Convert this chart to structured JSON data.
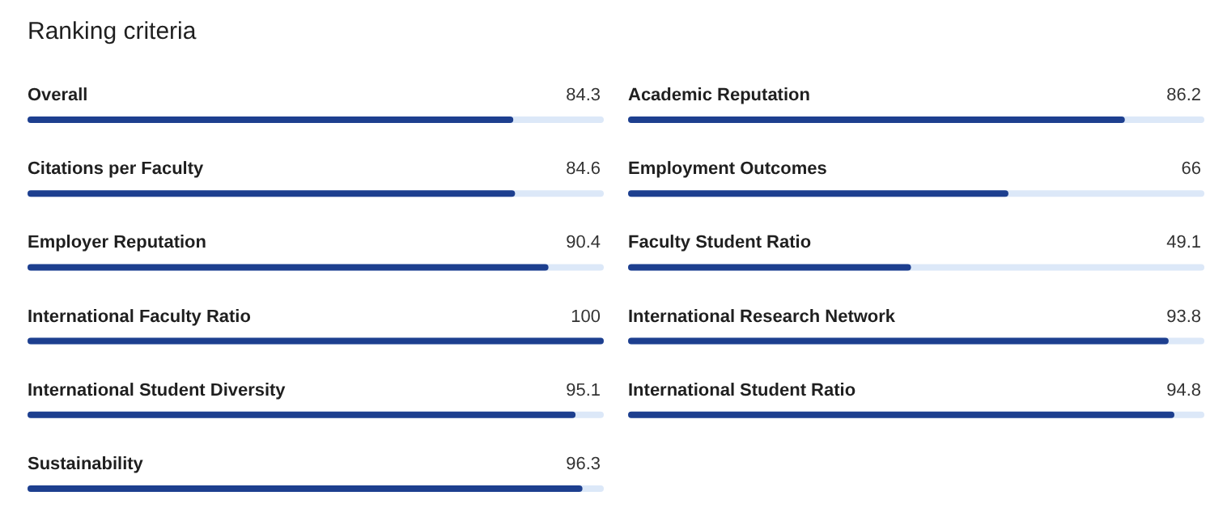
{
  "chart_data": [
    {
      "type": "bar",
      "title": "Ranking criteria",
      "orientation": "horizontal",
      "categories": [
        "Overall",
        "Citations per Faculty",
        "Employer Reputation",
        "International Faculty Ratio",
        "International Student Diversity",
        "Sustainability"
      ],
      "values": [
        84.3,
        84.6,
        90.4,
        100,
        95.1,
        96.3
      ],
      "color": "#1d3f8f",
      "xlim": [
        0,
        100
      ],
      "data_labels": true
    },
    {
      "type": "bar",
      "orientation": "horizontal",
      "categories": [
        "Academic Reputation",
        "Employment Outcomes",
        "Faculty Student Ratio",
        "International Research Network",
        "International Student Ratio"
      ],
      "values": [
        86.2,
        66,
        49.1,
        93.8,
        94.8
      ],
      "color": "#1d3f8f",
      "xlim": [
        0,
        100
      ],
      "data_labels": true
    }
  ]
}
